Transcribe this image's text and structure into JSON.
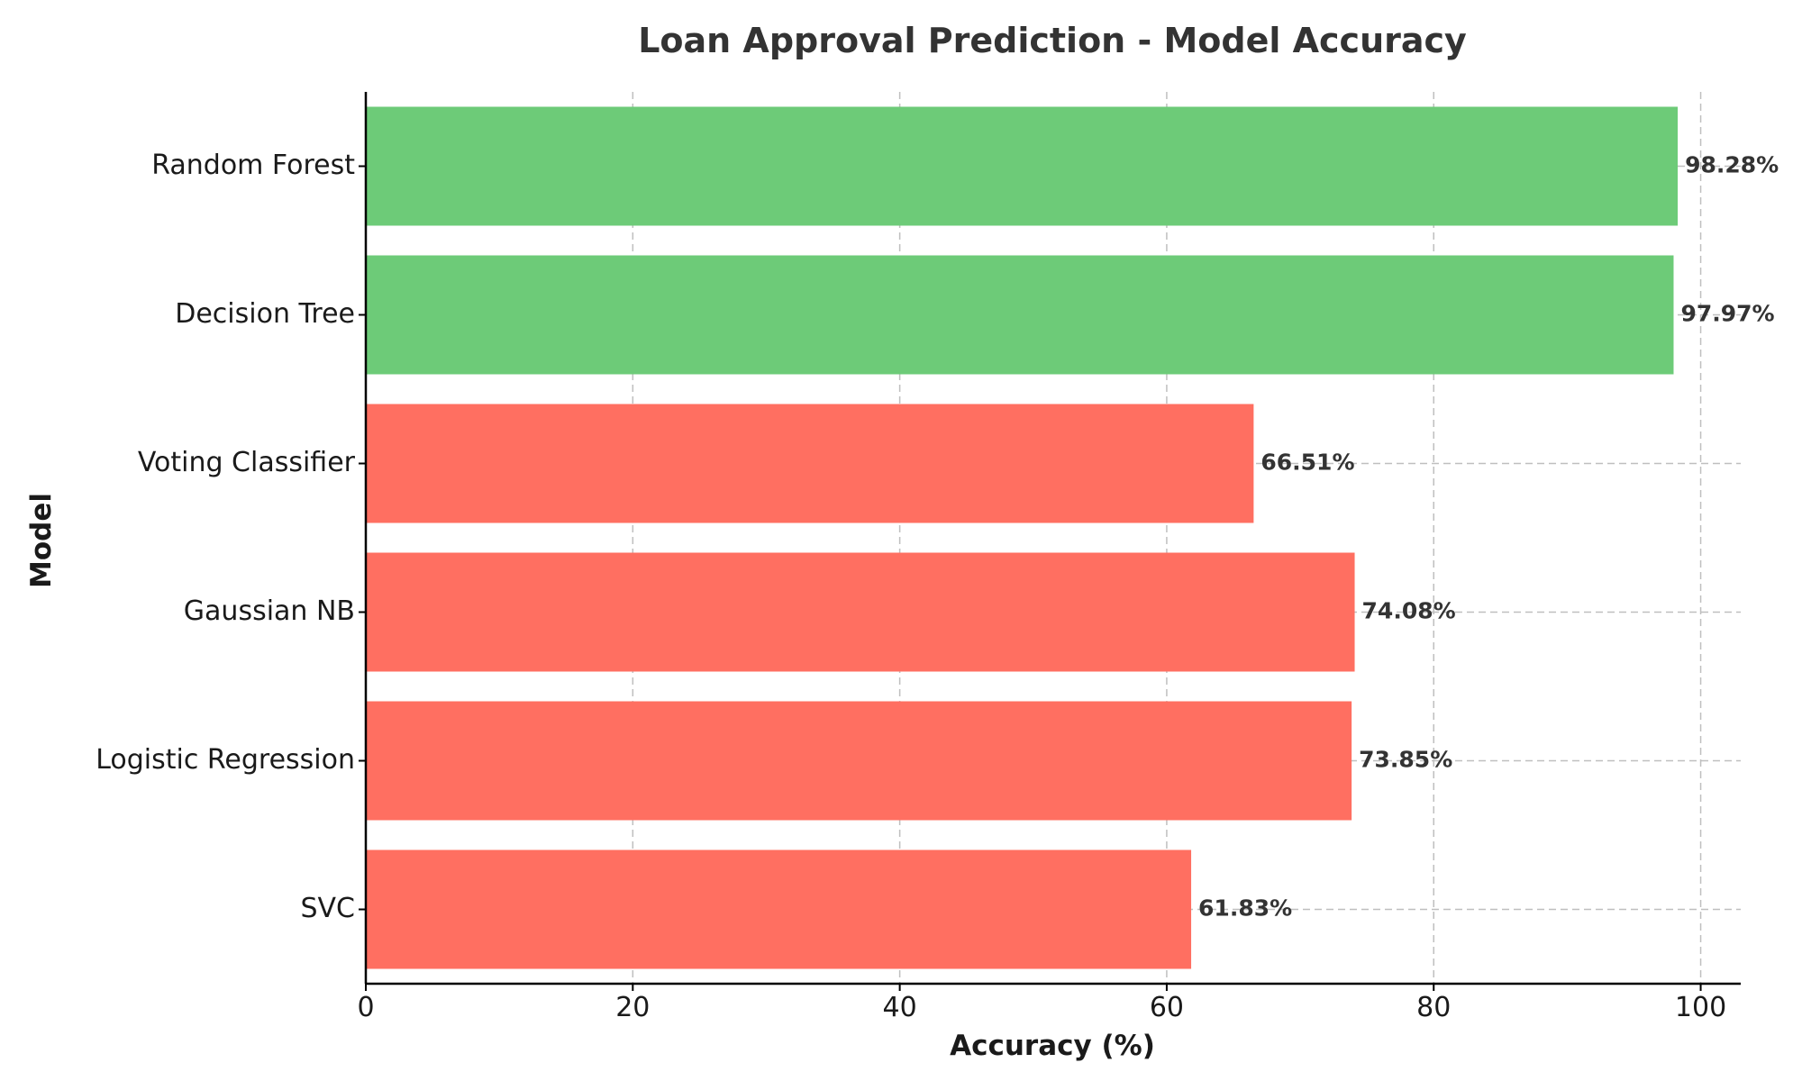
{
  "chart_data": {
    "type": "bar",
    "orientation": "horizontal",
    "title": "Loan Approval Prediction - Model Accuracy",
    "xlabel": "Accuracy (%)",
    "ylabel": "Model",
    "xlim": [
      0,
      103
    ],
    "xticks": [
      "0",
      "20",
      "40",
      "60",
      "80",
      "100"
    ],
    "grid": true,
    "categories": [
      "Random Forest",
      "Decision Tree",
      "Voting Classifier",
      "Gaussian NB",
      "Logistic Regression",
      "SVC"
    ],
    "values": [
      98.28,
      97.97,
      66.51,
      74.08,
      73.85,
      61.83
    ],
    "value_labels": [
      "98.28%",
      "97.97%",
      "66.51%",
      "74.08%",
      "73.85%",
      "61.83%"
    ],
    "bar_colors": [
      "#6dcb78",
      "#6dcb78",
      "#ff6f61",
      "#ff6f61",
      "#ff6f61",
      "#ff6f61"
    ]
  }
}
